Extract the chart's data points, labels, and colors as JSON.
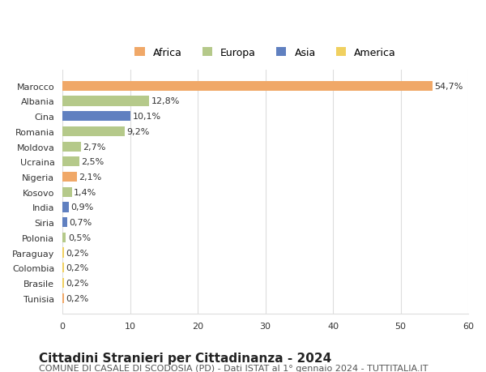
{
  "countries": [
    "Marocco",
    "Albania",
    "Cina",
    "Romania",
    "Moldova",
    "Ucraina",
    "Nigeria",
    "Kosovo",
    "India",
    "Siria",
    "Polonia",
    "Paraguay",
    "Colombia",
    "Brasile",
    "Tunisia"
  ],
  "values": [
    54.7,
    12.8,
    10.1,
    9.2,
    2.7,
    2.5,
    2.1,
    1.4,
    0.9,
    0.7,
    0.5,
    0.2,
    0.2,
    0.2,
    0.2
  ],
  "labels": [
    "54,7%",
    "12,8%",
    "10,1%",
    "9,2%",
    "2,7%",
    "2,5%",
    "2,1%",
    "1,4%",
    "0,9%",
    "0,7%",
    "0,5%",
    "0,2%",
    "0,2%",
    "0,2%",
    "0,2%"
  ],
  "continents": [
    "Africa",
    "Europa",
    "Asia",
    "Europa",
    "Europa",
    "Europa",
    "Africa",
    "Europa",
    "Asia",
    "Asia",
    "Europa",
    "America",
    "America",
    "America",
    "Africa"
  ],
  "continent_colors": {
    "Africa": "#F0A868",
    "Europa": "#B5C98A",
    "Asia": "#6080C0",
    "America": "#F0D060"
  },
  "legend_order": [
    "Africa",
    "Europa",
    "Asia",
    "America"
  ],
  "title": "Cittadini Stranieri per Cittadinanza - 2024",
  "subtitle": "COMUNE DI CASALE DI SCODOSIA (PD) - Dati ISTAT al 1° gennaio 2024 - TUTTITALIA.IT",
  "xlim": [
    0,
    60
  ],
  "xticks": [
    0,
    10,
    20,
    30,
    40,
    50,
    60
  ],
  "background_color": "#ffffff",
  "grid_color": "#dddddd",
  "title_fontsize": 11,
  "subtitle_fontsize": 8,
  "label_fontsize": 8,
  "tick_fontsize": 8
}
